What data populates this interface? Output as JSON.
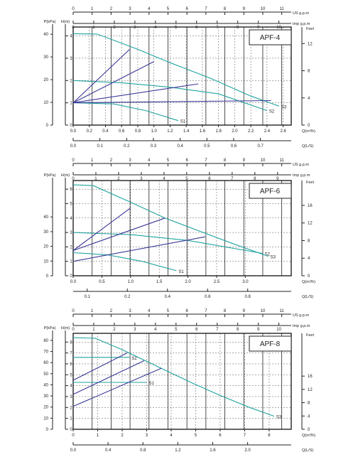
{
  "chart_data": [
    {
      "type": "line",
      "name": "APF-4",
      "title": "APF-4",
      "left_axis_labels": {
        "p": "P(kPa)",
        "h": "H(m)"
      },
      "right_axis_label": "Feet",
      "top_axis_labels": {
        "us": "US  g.p.m",
        "imp": "Imp  g.p.m"
      },
      "bottom_axis_labels": {
        "q_m3h": "Q(m³/h)",
        "q_ls": "Q(L/S)"
      },
      "xlim": [
        0,
        2.7
      ],
      "ylim_h": [
        0,
        4.4
      ],
      "h_ticks": [
        0,
        1,
        2,
        3,
        4
      ],
      "p_ticks": [
        0,
        10,
        20,
        30,
        40
      ],
      "feet_ticks": [
        0,
        4,
        8,
        12
      ],
      "q_m3h_ticks": [
        "0.0",
        "0.2",
        "0.4",
        "0.6",
        "0.8",
        "1.0",
        "1.2",
        "1.4",
        "1.6",
        "1.8",
        "2.0",
        "2.2",
        "2.4",
        "2.6"
      ],
      "q_ls_ticks": [
        "0.0",
        "0.1",
        "0.2",
        "0.3",
        "0.4",
        "0.5",
        "0.6",
        "0.7"
      ],
      "us_gpm_ticks": [
        0,
        1,
        2,
        3,
        4,
        5,
        6,
        7,
        8,
        9,
        10,
        11
      ],
      "imp_gpm_ticks": [
        0,
        1,
        2,
        3,
        4,
        5,
        6,
        7,
        8,
        9,
        10
      ],
      "series": [
        {
          "name": "S1",
          "role": "pump",
          "x": [
            0,
            0.5,
            0.9,
            1.3
          ],
          "y": [
            1.0,
            0.95,
            0.65,
            0.2
          ]
        },
        {
          "name": "S2",
          "role": "pump",
          "x": [
            0,
            0.6,
            1.2,
            1.8,
            2.4
          ],
          "y": [
            2.0,
            1.9,
            1.7,
            1.4,
            0.65
          ]
        },
        {
          "name": "S3",
          "role": "pump",
          "x": [
            0,
            0.3,
            0.8,
            1.2,
            1.7,
            2.2,
            2.55
          ],
          "y": [
            4.1,
            4.08,
            3.4,
            2.8,
            2.1,
            1.3,
            0.85
          ]
        },
        {
          "name": "",
          "role": "system",
          "x": [
            0,
            0.7
          ],
          "y": [
            1.0,
            3.4
          ]
        },
        {
          "name": "",
          "role": "system",
          "x": [
            0,
            1.0
          ],
          "y": [
            1.0,
            2.85
          ]
        },
        {
          "name": "",
          "role": "system",
          "x": [
            0,
            1.55
          ],
          "y": [
            1.0,
            1.85
          ]
        },
        {
          "name": "",
          "role": "system",
          "x": [
            0,
            2.45
          ],
          "y": [
            1.0,
            1.1
          ]
        }
      ]
    },
    {
      "type": "line",
      "name": "APF-6",
      "title": "APF-6",
      "left_axis_labels": {
        "p": "P(kPa)",
        "h": "H(m)"
      },
      "right_axis_label": "Feet",
      "top_axis_labels": {
        "us": "US  g.p.m",
        "imp": "Imp  g.p.m"
      },
      "bottom_axis_labels": {
        "q_m3h": "Q(m³/h)",
        "q_ls": "Q(L/S)"
      },
      "xlim": [
        0,
        3.8
      ],
      "ylim_h": [
        0,
        6.6
      ],
      "h_ticks": [
        0,
        1,
        2,
        3,
        4,
        5,
        6
      ],
      "p_ticks": [
        0,
        10,
        20,
        30,
        40
      ],
      "feet_ticks": [
        0,
        4,
        8,
        12,
        16
      ],
      "q_m3h_ticks": [
        "0.0",
        "0.5",
        "1.0",
        "1.5",
        "2.0",
        "2.5",
        "3.0"
      ],
      "q_ls_ticks": [
        "0.1",
        "0.2",
        "0.4",
        "0.6",
        "0.8"
      ],
      "us_gpm_ticks": [
        0,
        1,
        2,
        3,
        4,
        5,
        6,
        7,
        8,
        9,
        10,
        11
      ],
      "imp_gpm_ticks": [
        0,
        1,
        2,
        3,
        4,
        5,
        6,
        7,
        8,
        9
      ],
      "series": [
        {
          "name": "S1",
          "role": "pump",
          "x": [
            0,
            0.6,
            1.2,
            1.8
          ],
          "y": [
            1.6,
            1.45,
            1.0,
            0.35
          ]
        },
        {
          "name": "S2",
          "role": "pump",
          "x": [
            0,
            1.0,
            2.0,
            3.3
          ],
          "y": [
            3.0,
            2.85,
            2.45,
            1.55
          ]
        },
        {
          "name": "S3",
          "role": "pump",
          "x": [
            0,
            0.35,
            1.0,
            1.6,
            2.2,
            2.8,
            3.4
          ],
          "y": [
            6.3,
            6.25,
            5.1,
            4.0,
            3.1,
            2.2,
            1.35
          ]
        },
        {
          "name": "",
          "role": "system",
          "x": [
            0,
            1.0
          ],
          "y": [
            1.75,
            4.7
          ]
        },
        {
          "name": "",
          "role": "system",
          "x": [
            0,
            1.6
          ],
          "y": [
            1.75,
            4.0
          ]
        },
        {
          "name": "",
          "role": "system",
          "x": [
            0,
            2.3
          ],
          "y": [
            1.0,
            2.7
          ]
        }
      ]
    },
    {
      "type": "line",
      "name": "APF-8",
      "title": "APF-8",
      "left_axis_labels": {
        "p": "P(kPa)",
        "h": "H(m)"
      },
      "right_axis_label": "Feet",
      "top_axis_labels": {
        "us": "US  g.p.m",
        "imp": "Imp  g.p.m"
      },
      "bottom_axis_labels": {
        "q_m3h": "Q(m³/h)",
        "q_ls": "Q(L/S)"
      },
      "xlim": [
        0,
        8.9
      ],
      "ylim_h": [
        0,
        8.8
      ],
      "h_ticks": [
        0,
        1,
        2,
        3,
        4,
        5,
        6,
        7,
        8
      ],
      "p_ticks": [
        0,
        10,
        20,
        30,
        40,
        50,
        60,
        70,
        80
      ],
      "feet_ticks": [
        0,
        4,
        8,
        12,
        16
      ],
      "q_m3h_ticks": [
        "0",
        "1",
        "2",
        "3",
        "4",
        "5",
        "6",
        "7",
        "8"
      ],
      "q_ls_ticks": [
        "0.0",
        "0.4",
        "0.8",
        "1.2",
        "1.6",
        "2.0"
      ],
      "us_gpm_ticks": [
        0,
        1,
        2,
        3,
        4,
        5,
        6,
        7,
        8,
        9,
        10,
        11
      ],
      "imp_gpm_ticks": [
        0,
        1,
        2,
        3,
        4,
        5,
        6,
        7,
        8,
        9,
        10
      ],
      "series": [
        {
          "name": "S1",
          "role": "pump",
          "x": [
            0,
            3.0
          ],
          "y": [
            4.3,
            4.3
          ]
        },
        {
          "name": "S2",
          "role": "pump",
          "x": [
            0,
            2.3
          ],
          "y": [
            6.6,
            6.6
          ]
        },
        {
          "name": "S3",
          "role": "pump",
          "x": [
            0,
            0.9,
            2.0,
            3.5,
            4.8,
            6.0,
            7.2,
            8.2
          ],
          "y": [
            8.4,
            8.35,
            7.3,
            5.7,
            4.3,
            3.1,
            2.0,
            1.2
          ]
        },
        {
          "name": "",
          "role": "system",
          "x": [
            0,
            2.2
          ],
          "y": [
            4.5,
            7.0
          ]
        },
        {
          "name": "",
          "role": "system",
          "x": [
            0,
            2.9
          ],
          "y": [
            3.2,
            6.3
          ]
        },
        {
          "name": "",
          "role": "system",
          "x": [
            0,
            3.6
          ],
          "y": [
            2.1,
            5.6
          ]
        }
      ]
    }
  ],
  "colors": {
    "pump": "#1fa3a0",
    "system": "#3b3897",
    "axis": "#222222",
    "grid": "#555555"
  },
  "series_labels": {
    "S1": "S1",
    "S2": "S2",
    "S3": "S3"
  }
}
